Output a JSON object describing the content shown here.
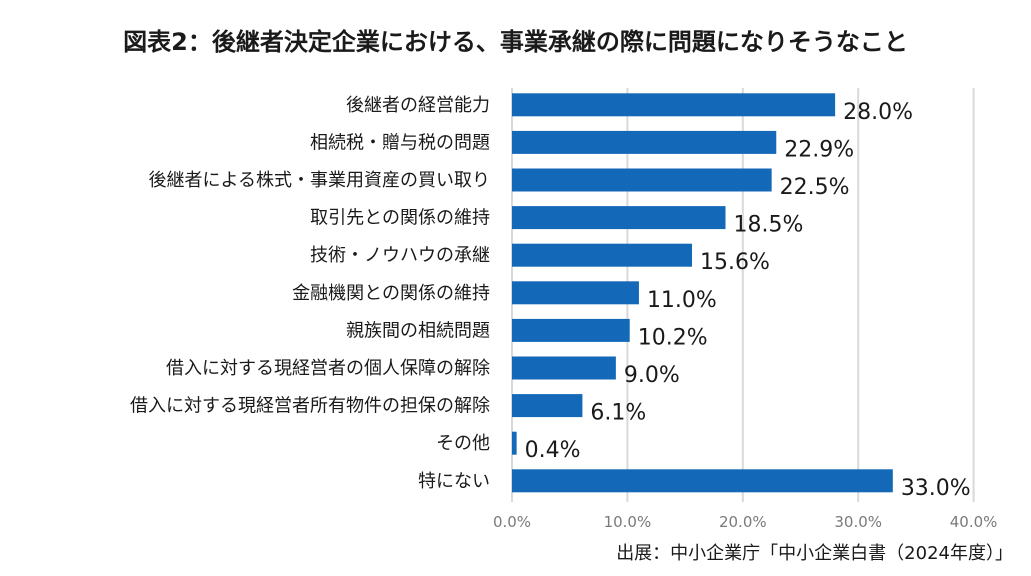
{
  "chart_data": {
    "type": "bar",
    "orientation": "horizontal",
    "title": "図表2：後継者決定企業における、事業承継の際に問題になりそうなこと",
    "source": "出展：中小企業庁「中小企業白書（2024年度）」",
    "categories": [
      "後継者の経営能力",
      "相続税・贈与税の問題",
      "後継者による株式・事業用資産の買い取り",
      "取引先との関係の維持",
      "技術・ノウハウの承継",
      "金融機関との関係の維持",
      "親族間の相続問題",
      "借入に対する現経営者の個人保障の解除",
      "借入に対する現経営者所有物件の担保の解除",
      "その他",
      "特にない"
    ],
    "values": [
      28.0,
      22.9,
      22.5,
      18.5,
      15.6,
      11.0,
      10.2,
      9.0,
      6.1,
      0.4,
      33.0
    ],
    "value_labels": [
      "28.0%",
      "22.9%",
      "22.5%",
      "18.5%",
      "15.6%",
      "11.0%",
      "10.2%",
      "9.0%",
      "6.1%",
      "0.4%",
      "33.0%"
    ],
    "xlim": [
      0,
      40
    ],
    "xticks": [
      "0.0%",
      "10.0%",
      "20.0%",
      "30.0%",
      "40.0%"
    ],
    "grid": "vertical",
    "bar_color": "#1468b8",
    "grid_color": "#d9d9d9"
  }
}
